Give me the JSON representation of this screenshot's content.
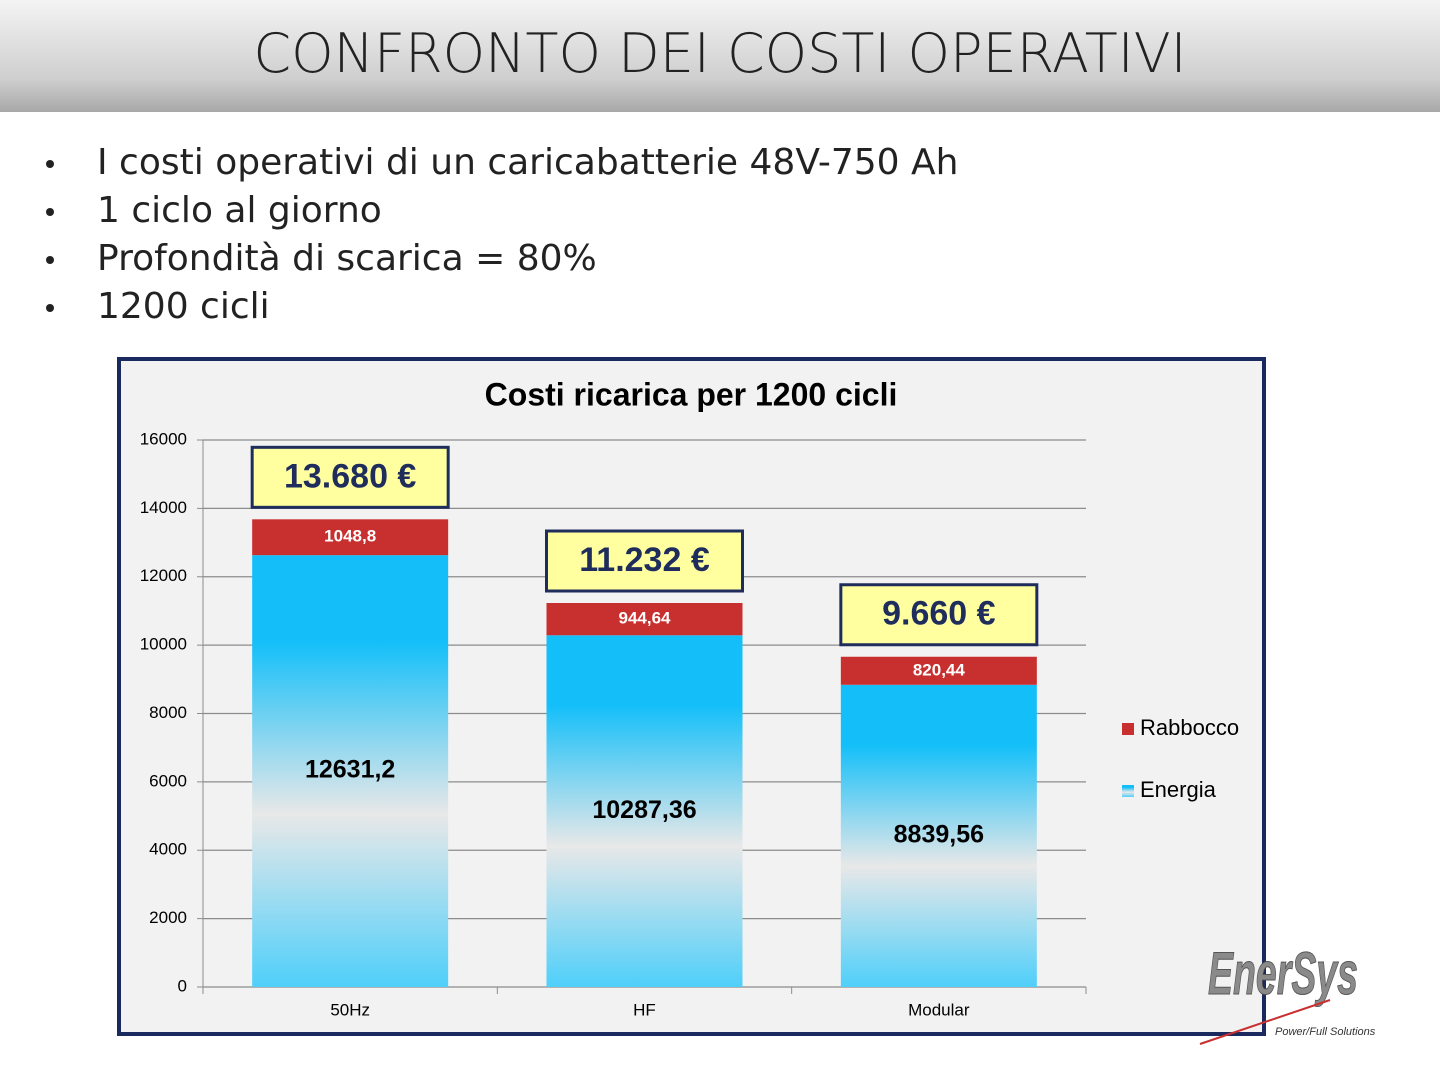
{
  "slide": {
    "title": "CONFRONTO DEI COSTI OPERATIVI",
    "bullets": [
      "I costi operativi di un caricabatterie 48V-750 Ah",
      "1 ciclo al giorno",
      "Profondità di scarica = 80%",
      "1200 cicli"
    ],
    "logo": "EnerSys",
    "logo_tagline": "Power/Full Solutions"
  },
  "chart_data": {
    "type": "stacked_bar",
    "title": "Costi ricarica per 1200 cicli",
    "categories": [
      "50Hz",
      "HF",
      "Modular"
    ],
    "series": [
      {
        "name": "Energia",
        "color": "#14bff9",
        "values": [
          12631.2,
          10287.36,
          8839.56
        ],
        "value_labels": [
          "12631,2",
          "10287,36",
          "8839,56"
        ]
      },
      {
        "name": "Rabbocco",
        "color": "#c8302f",
        "values": [
          1048.8,
          944.64,
          820.44
        ],
        "value_labels": [
          "1048,8",
          "944,64",
          "820,44"
        ]
      }
    ],
    "totals": [
      {
        "value": 13680,
        "label": "13.680 €"
      },
      {
        "value": 11232,
        "label": "11.232 €"
      },
      {
        "value": 9660,
        "label": "9.660 €"
      }
    ],
    "ylim": [
      0,
      16000
    ],
    "yticks": [
      0,
      2000,
      4000,
      6000,
      8000,
      10000,
      12000,
      14000,
      16000
    ],
    "grid": true,
    "legend": "right"
  }
}
